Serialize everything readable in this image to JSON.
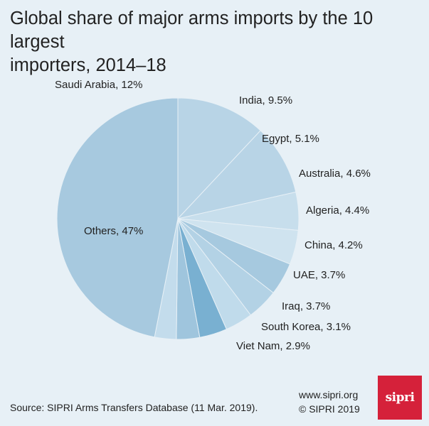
{
  "title_lines": [
    "Global share of major arms imports by the 10 largest",
    "importers, 2014–18"
  ],
  "chart_data": {
    "type": "pie",
    "title": "Global share of major arms imports by the 10 largest importers, 2014–18",
    "unit": "%",
    "slices": [
      {
        "label": "Saudi Arabia, 12%",
        "name": "Saudi Arabia",
        "value": 12,
        "color": "#b8d4e6"
      },
      {
        "label": "India, 9.5%",
        "name": "India",
        "value": 9.5,
        "color": "#b8d4e6"
      },
      {
        "label": "Egypt, 5.1%",
        "name": "Egypt",
        "value": 5.1,
        "color": "#c7deec"
      },
      {
        "label": "Australia, 4.6%",
        "name": "Australia",
        "value": 4.6,
        "color": "#cfe3ef"
      },
      {
        "label": "Algeria, 4.4%",
        "name": "Algeria",
        "value": 4.4,
        "color": "#a6c9df"
      },
      {
        "label": "China, 4.2%",
        "name": "China",
        "value": 4.2,
        "color": "#b3d2e5"
      },
      {
        "label": "UAE, 3.7%",
        "name": "UAE",
        "value": 3.7,
        "color": "#c0dbeb"
      },
      {
        "label": "Iraq, 3.7%",
        "name": "Iraq",
        "value": 3.7,
        "color": "#79b0d1"
      },
      {
        "label": "South Korea, 3.1%",
        "name": "South Korea",
        "value": 3.1,
        "color": "#9fc5dd"
      },
      {
        "label": "Viet Nam, 2.9%",
        "name": "Viet Nam",
        "value": 2.9,
        "color": "#c3dcec"
      },
      {
        "label": "Others, 47%",
        "name": "Others",
        "value": 47,
        "color": "#a7c9df"
      }
    ]
  },
  "footer": {
    "source": "Source: SIPRI Arms Transfers Database (11 Mar. 2019).",
    "website": "www.sipri.org",
    "copyright": "© SIPRI 2019",
    "logo_text": "sipri"
  }
}
